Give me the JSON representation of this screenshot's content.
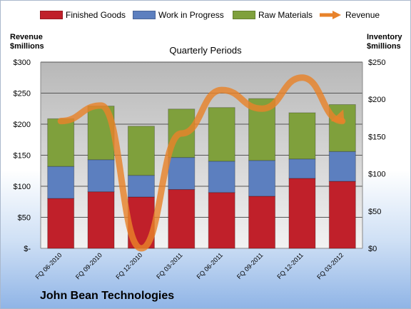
{
  "chart_data": {
    "type": "bar",
    "subtitle": "Quarterly Periods",
    "categories": [
      "FQ 06-2010",
      "FQ 09-2010",
      "FQ 12-2010",
      "FQ 03-2011",
      "FQ 06-2011",
      "FQ 09-2011",
      "FQ 12-2011",
      "FQ 03-2012"
    ],
    "series": [
      {
        "name": "Finished Goods",
        "color": "#c0202a",
        "values": [
          67,
          76,
          69,
          79,
          75,
          70,
          94,
          90
        ]
      },
      {
        "name": "Work in Progress",
        "color": "#5c7fbf",
        "values": [
          43,
          43,
          29,
          43,
          42,
          48,
          26,
          40
        ]
      },
      {
        "name": "Raw Materials",
        "color": "#7fa03c",
        "values": [
          64,
          72,
          66,
          65,
          72,
          83,
          62,
          63
        ]
      }
    ],
    "line_series": {
      "name": "Revenue",
      "color": "#e8822a",
      "values": [
        205,
        230,
        0,
        185,
        255,
        225,
        275,
        205
      ]
    },
    "left_axis": {
      "title_line1": "Revenue",
      "title_line2": "$millions",
      "ticks": [
        "$-",
        "$50",
        "$100",
        "$150",
        "$200",
        "$250",
        "$300"
      ],
      "range": [
        0,
        300
      ]
    },
    "right_axis": {
      "title_line1": "Inventory",
      "title_line2": "$millions",
      "ticks": [
        "$0",
        "$50",
        "$100",
        "$150",
        "$200",
        "$250"
      ],
      "range": [
        0,
        250
      ]
    },
    "grid": true,
    "legend_position": "top"
  },
  "footer": {
    "company": "John Bean Technologies"
  }
}
